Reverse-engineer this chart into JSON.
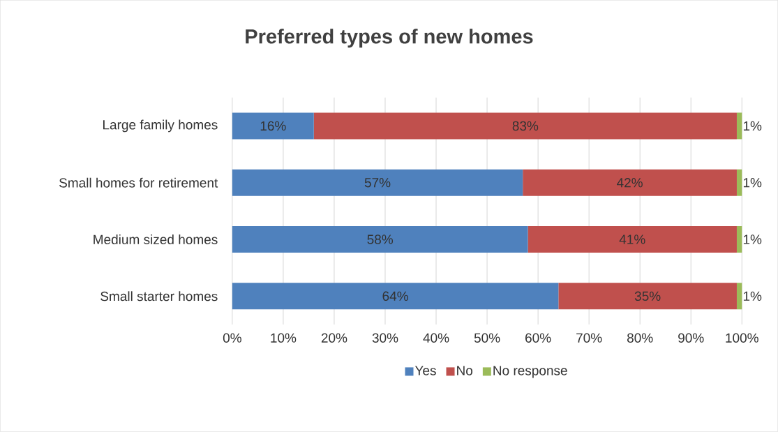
{
  "chart_data": {
    "type": "bar",
    "orientation": "horizontal",
    "stacked": true,
    "title": "Preferred types of new homes",
    "categories": [
      "Large family homes",
      "Small homes for retirement",
      "Medium sized homes",
      "Small starter homes"
    ],
    "series": [
      {
        "name": "Yes",
        "color": "#4f81bd",
        "values": [
          16,
          57,
          58,
          64
        ],
        "value_labels": [
          "16%",
          "57%",
          "58%",
          "64%"
        ]
      },
      {
        "name": "No",
        "color": "#c0504d",
        "values": [
          83,
          42,
          41,
          35
        ],
        "value_labels": [
          "83%",
          "42%",
          "41%",
          "35%"
        ]
      },
      {
        "name": "No response",
        "color": "#9bbb59",
        "values": [
          1,
          1,
          1,
          1
        ],
        "value_labels": [
          "1%",
          "1%",
          "1%",
          "1%"
        ]
      }
    ],
    "xlim": [
      0,
      100
    ],
    "xticks": [
      {
        "value": 0,
        "label": "0%"
      },
      {
        "value": 10,
        "label": "10%"
      },
      {
        "value": 20,
        "label": "20%"
      },
      {
        "value": 30,
        "label": "30%"
      },
      {
        "value": 40,
        "label": "40%"
      },
      {
        "value": 50,
        "label": "50%"
      },
      {
        "value": 60,
        "label": "60%"
      },
      {
        "value": 70,
        "label": "70%"
      },
      {
        "value": 80,
        "label": "80%"
      },
      {
        "value": 90,
        "label": "90%"
      },
      {
        "value": 100,
        "label": "100%"
      }
    ],
    "grid": "x",
    "legend": "bottom"
  }
}
